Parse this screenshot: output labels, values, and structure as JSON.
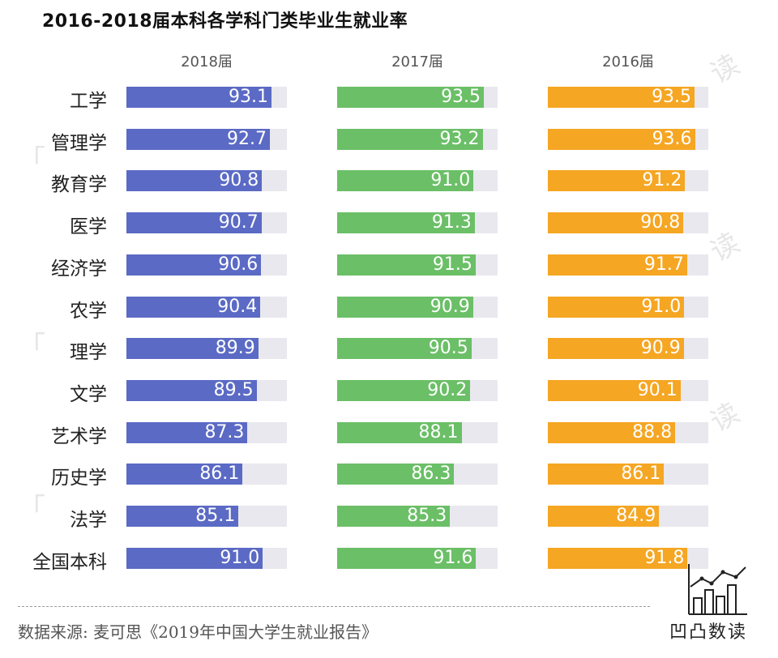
{
  "chart_data": {
    "type": "bar",
    "title": "2016-2018届本科各学科门类毕业生就业率",
    "categories": [
      "工学",
      "管理学",
      "教育学",
      "医学",
      "经济学",
      "农学",
      "理学",
      "文学",
      "艺术学",
      "历史学",
      "法学",
      "全国本科"
    ],
    "series": [
      {
        "name": "2018届",
        "color": "#5b6ac4",
        "values": [
          93.1,
          92.7,
          90.8,
          90.7,
          90.6,
          90.4,
          89.9,
          89.5,
          87.3,
          86.1,
          85.1,
          91.0
        ]
      },
      {
        "name": "2017届",
        "color": "#6bbf67",
        "values": [
          93.5,
          93.2,
          91.0,
          91.3,
          91.5,
          90.9,
          90.5,
          90.2,
          88.1,
          86.3,
          85.3,
          91.6
        ]
      },
      {
        "name": "2016届",
        "color": "#f5a623",
        "values": [
          93.5,
          93.6,
          91.2,
          90.8,
          91.7,
          91.0,
          90.9,
          90.1,
          88.8,
          86.1,
          84.9,
          91.8
        ]
      }
    ],
    "xlim": [
      0,
      100
    ],
    "track_color": "#e8e8ee",
    "grid": false,
    "legend": "top"
  },
  "source": "数据来源: 麦可思《2019年中国大学生就业报告》",
  "brand": {
    "name": "凹凸数读"
  },
  "watermarks": {
    "left": "「",
    "right": "读"
  }
}
